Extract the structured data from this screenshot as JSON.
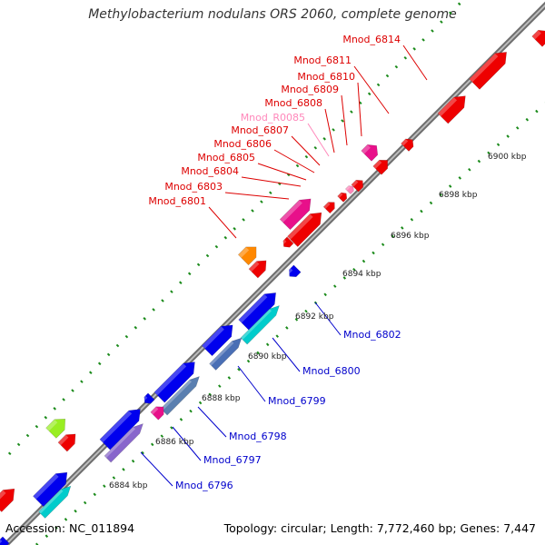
{
  "title": "Methylobacterium nodulans ORS 2060, complete genome",
  "footer": {
    "accession": "Accession: NC_011894",
    "summary": "Topology: circular; Length: 7,772,460 bp; Genes: 7,447"
  },
  "colors": {
    "top_label": "#dd0000",
    "bottom_label": "#0000cc",
    "rna_label": "#ff88bb",
    "backbone": "#8a8a8a",
    "dots": "#1a8a1a"
  },
  "scale_ticks": [
    "6884 kbp",
    "6886 kbp",
    "6888 kbp",
    "6890 kbp",
    "6892 kbp",
    "6894 kbp",
    "6896 kbp",
    "6898 kbp",
    "6900 kbp"
  ],
  "top_labels": [
    {
      "text": "Mnod_6814",
      "kind": "gene"
    },
    {
      "text": "Mnod_6811",
      "kind": "gene"
    },
    {
      "text": "Mnod_6810",
      "kind": "gene"
    },
    {
      "text": "Mnod_6809",
      "kind": "gene"
    },
    {
      "text": "Mnod_6808",
      "kind": "gene"
    },
    {
      "text": "Mnod_R0085",
      "kind": "rna"
    },
    {
      "text": "Mnod_6807",
      "kind": "gene"
    },
    {
      "text": "Mnod_6806",
      "kind": "gene"
    },
    {
      "text": "Mnod_6805",
      "kind": "gene"
    },
    {
      "text": "Mnod_6804",
      "kind": "gene"
    },
    {
      "text": "Mnod_6803",
      "kind": "gene"
    },
    {
      "text": "Mnod_6801",
      "kind": "gene"
    }
  ],
  "bottom_labels": [
    {
      "text": "Mnod_6802"
    },
    {
      "text": "Mnod_6800"
    },
    {
      "text": "Mnod_6799"
    },
    {
      "text": "Mnod_6798"
    },
    {
      "text": "Mnod_6797"
    },
    {
      "text": "Mnod_6796"
    }
  ]
}
